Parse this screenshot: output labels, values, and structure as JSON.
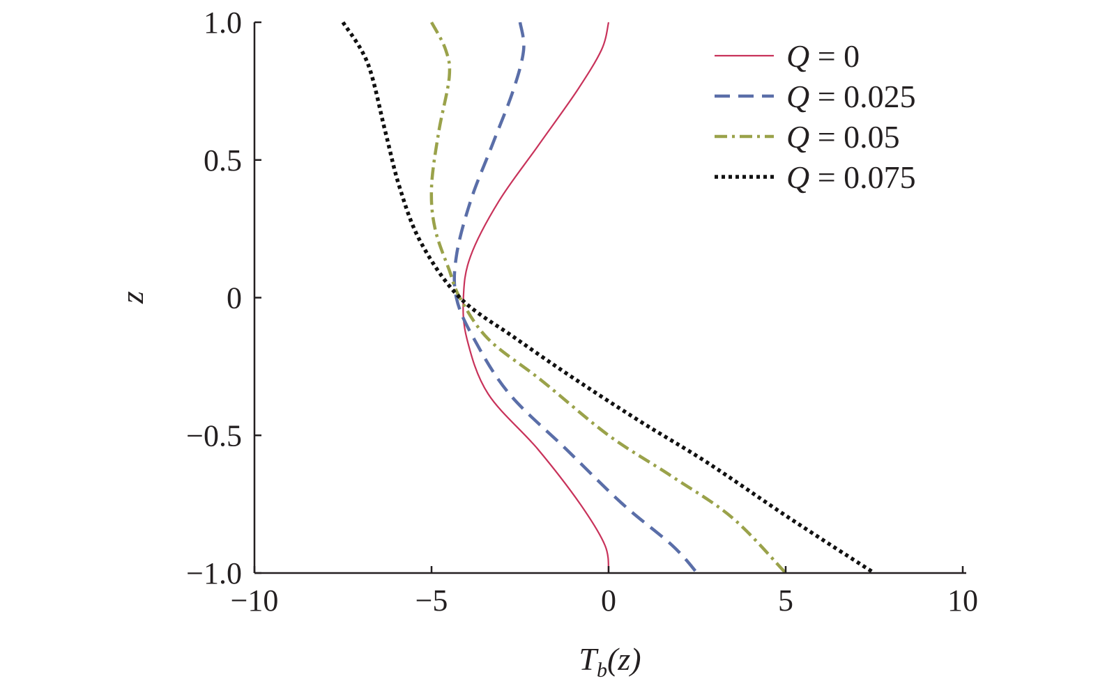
{
  "chart_data": {
    "type": "line",
    "xlabel_main": "T",
    "xlabel_sub": "b",
    "xlabel_arg": "(z)",
    "ylabel": "z",
    "xlim": [
      -10,
      10
    ],
    "ylim": [
      -1.0,
      1.0
    ],
    "x_ticks": [
      -10,
      -5,
      0,
      5,
      10
    ],
    "x_tick_labels": [
      "−10",
      "−5",
      "0",
      "5",
      "10"
    ],
    "y_ticks": [
      1.0,
      0.5,
      0,
      -0.5,
      -1.0
    ],
    "y_tick_labels": [
      "1.0",
      "0.5",
      "0",
      "−0.5",
      "−1.0"
    ],
    "grid": false,
    "legend_position": "top-right",
    "series": [
      {
        "name": "Q = 0",
        "legend_var": "Q",
        "legend_value": "= 0",
        "color": "#c8325a",
        "style": "solid",
        "points": [
          [
            0.0,
            1.0
          ],
          [
            -0.2,
            0.9
          ],
          [
            -0.9,
            0.75
          ],
          [
            -2.0,
            0.55
          ],
          [
            -3.1,
            0.35
          ],
          [
            -3.9,
            0.15
          ],
          [
            -4.1,
            0.0
          ],
          [
            -4.0,
            -0.15
          ],
          [
            -3.4,
            -0.35
          ],
          [
            -2.0,
            -0.55
          ],
          [
            -0.8,
            -0.75
          ],
          [
            -0.1,
            -0.9
          ],
          [
            0.0,
            -1.0
          ]
        ]
      },
      {
        "name": "Q = 0.025",
        "legend_var": "Q",
        "legend_value": "= 0.025",
        "color": "#5a6ea8",
        "style": "dashed",
        "points": [
          [
            -2.5,
            1.0
          ],
          [
            -2.4,
            0.9
          ],
          [
            -2.7,
            0.75
          ],
          [
            -3.3,
            0.55
          ],
          [
            -3.9,
            0.35
          ],
          [
            -4.3,
            0.15
          ],
          [
            -4.3,
            0.0
          ],
          [
            -3.8,
            -0.15
          ],
          [
            -2.8,
            -0.35
          ],
          [
            -1.2,
            -0.55
          ],
          [
            0.4,
            -0.75
          ],
          [
            1.8,
            -0.9
          ],
          [
            2.5,
            -1.0
          ]
        ]
      },
      {
        "name": "Q = 0.05",
        "legend_var": "Q",
        "legend_value": "= 0.05",
        "color": "#9aa24a",
        "style": "dashdot",
        "points": [
          [
            -5.0,
            1.0
          ],
          [
            -4.6,
            0.9
          ],
          [
            -4.5,
            0.8
          ],
          [
            -4.8,
            0.6
          ],
          [
            -5.0,
            0.4
          ],
          [
            -4.9,
            0.25
          ],
          [
            -4.5,
            0.1
          ],
          [
            -4.2,
            0.0
          ],
          [
            -3.4,
            -0.15
          ],
          [
            -1.9,
            -0.3
          ],
          [
            0.0,
            -0.5
          ],
          [
            1.8,
            -0.65
          ],
          [
            3.5,
            -0.8
          ],
          [
            5.0,
            -1.0
          ]
        ]
      },
      {
        "name": "Q = 0.075",
        "legend_var": "Q",
        "legend_value": "= 0.075",
        "color": "#111111",
        "style": "dotted",
        "points": [
          [
            -7.5,
            1.0
          ],
          [
            -6.8,
            0.85
          ],
          [
            -6.3,
            0.6
          ],
          [
            -5.9,
            0.4
          ],
          [
            -5.3,
            0.2
          ],
          [
            -4.2,
            0.0
          ],
          [
            -2.6,
            -0.15
          ],
          [
            -0.9,
            -0.3
          ],
          [
            0.9,
            -0.45
          ],
          [
            2.8,
            -0.6
          ],
          [
            5.1,
            -0.8
          ],
          [
            7.5,
            -1.0
          ]
        ]
      }
    ]
  }
}
